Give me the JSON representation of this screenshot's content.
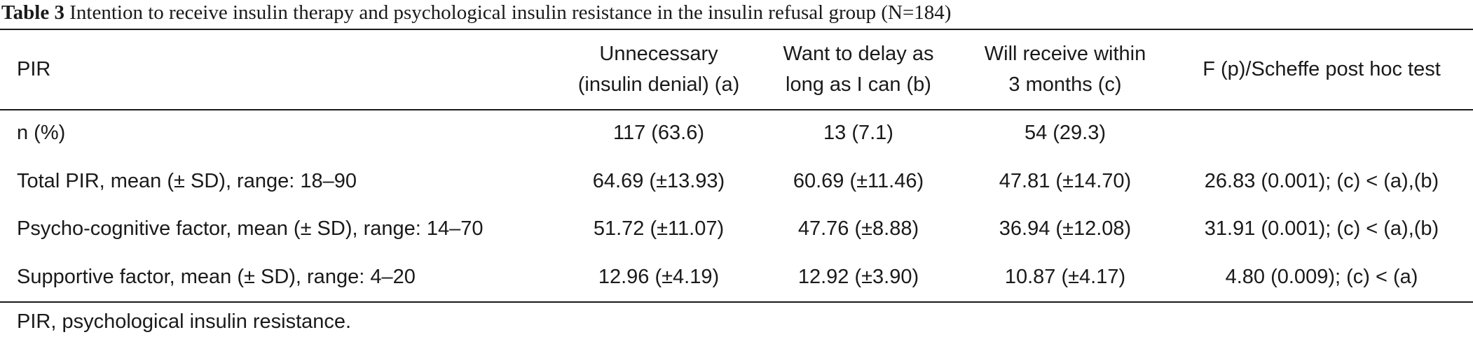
{
  "caption": {
    "label": "Table 3",
    "text": "Intention to receive insulin therapy and psychological insulin resistance in the insulin refusal group (N=184)"
  },
  "table": {
    "headers": [
      [
        "PIR"
      ],
      [
        "Unnecessary",
        "(insulin denial) (a)"
      ],
      [
        "Want to delay as",
        "long as I can (b)"
      ],
      [
        "Will receive within",
        "3 months (c)"
      ],
      [
        "F (p)/Scheffe post hoc test"
      ]
    ],
    "rows": [
      [
        "n (%)",
        "117 (63.6)",
        "13 (7.1)",
        "54 (29.3)",
        ""
      ],
      [
        "Total PIR, mean (± SD), range: 18–90",
        "64.69 (±13.93)",
        "60.69 (±11.46)",
        "47.81 (±14.70)",
        "26.83 (0.001); (c) < (a),(b)"
      ],
      [
        "Psycho-cognitive factor, mean (± SD), range: 14–70",
        "51.72 (±11.07)",
        "47.76 (±8.88)",
        "36.94 (±12.08)",
        "31.91 (0.001); (c) < (a),(b)"
      ],
      [
        "Supportive factor, mean (± SD), range: 4–20",
        "12.96 (±4.19)",
        "12.92 (±3.90)",
        "10.87 (±4.17)",
        "4.80 (0.009); (c) < (a)"
      ]
    ]
  },
  "footnote": "PIR, psychological insulin resistance."
}
